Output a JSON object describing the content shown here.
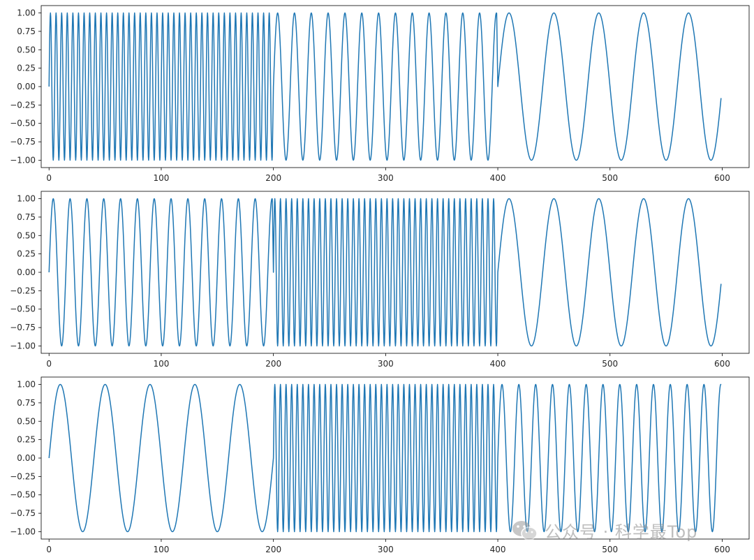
{
  "chart_data": [
    {
      "type": "line",
      "xlim": [
        -7,
        624
      ],
      "ylim": [
        -1.1,
        1.1
      ],
      "xticks": [
        0,
        100,
        200,
        300,
        400,
        500,
        600
      ],
      "yticks": [
        1.0,
        0.75,
        0.5,
        0.25,
        0.0,
        -0.25,
        -0.5,
        -0.75,
        -1.0
      ],
      "xtick_labels": [
        "0",
        "100",
        "200",
        "300",
        "400",
        "500",
        "600"
      ],
      "ytick_labels": [
        "1.00",
        "0.75",
        "0.50",
        "0.25",
        "0.00",
        "−0.25",
        "−0.50",
        "−0.75",
        "−1.00"
      ],
      "color": "#1f77b4",
      "grid": false,
      "series": [
        {
          "x_range": [
            0,
            599
          ],
          "segments": [
            {
              "x_start": 0,
              "x_end": 199,
              "period": 5
            },
            {
              "x_start": 200,
              "x_end": 399,
              "period": 15
            },
            {
              "x_start": 400,
              "x_end": 599,
              "period": 40
            }
          ]
        }
      ]
    },
    {
      "type": "line",
      "xlim": [
        -7,
        624
      ],
      "ylim": [
        -1.1,
        1.1
      ],
      "xticks": [
        0,
        100,
        200,
        300,
        400,
        500,
        600
      ],
      "yticks": [
        1.0,
        0.75,
        0.5,
        0.25,
        0.0,
        -0.25,
        -0.5,
        -0.75,
        -1.0
      ],
      "xtick_labels": [
        "0",
        "100",
        "200",
        "300",
        "400",
        "500",
        "600"
      ],
      "ytick_labels": [
        "1.00",
        "0.75",
        "0.50",
        "0.25",
        "0.00",
        "−0.25",
        "−0.50",
        "−0.75",
        "−1.00"
      ],
      "color": "#1f77b4",
      "grid": false,
      "series": [
        {
          "x_range": [
            0,
            599
          ],
          "segments": [
            {
              "x_start": 0,
              "x_end": 199,
              "period": 15
            },
            {
              "x_start": 200,
              "x_end": 399,
              "period": 5
            },
            {
              "x_start": 400,
              "x_end": 599,
              "period": 40
            }
          ]
        }
      ]
    },
    {
      "type": "line",
      "xlim": [
        -7,
        624
      ],
      "ylim": [
        -1.1,
        1.1
      ],
      "xticks": [
        0,
        100,
        200,
        300,
        400,
        500,
        600
      ],
      "yticks": [
        1.0,
        0.75,
        0.5,
        0.25,
        0.0,
        -0.25,
        -0.5,
        -0.75,
        -1.0
      ],
      "xtick_labels": [
        "0",
        "100",
        "200",
        "300",
        "400",
        "500",
        "600"
      ],
      "ytick_labels": [
        "1.00",
        "0.75",
        "0.50",
        "0.25",
        "0.00",
        "−0.25",
        "−0.50",
        "−0.75",
        "−1.00"
      ],
      "color": "#1f77b4",
      "grid": false,
      "series": [
        {
          "x_range": [
            0,
            599
          ],
          "segments": [
            {
              "x_start": 0,
              "x_end": 199,
              "period": 40
            },
            {
              "x_start": 200,
              "x_end": 399,
              "period": 5
            },
            {
              "x_start": 400,
              "x_end": 599,
              "period": 15
            }
          ]
        }
      ]
    }
  ],
  "watermark": {
    "text": "公众号 · 科学最Top",
    "icon": "wechat-icon"
  }
}
